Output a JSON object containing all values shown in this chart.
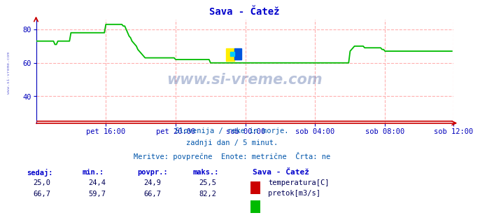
{
  "title": "Sava - Čatež",
  "title_color": "#0000cc",
  "bg_color": "#ffffff",
  "plot_bg_color": "#ffffff",
  "grid_color": "#ffb0b0",
  "axis_color": "#0000bb",
  "xlabel_ticks": [
    "pet 16:00",
    "pet 20:00",
    "sob 00:00",
    "sob 04:00",
    "sob 08:00",
    "sob 12:00"
  ],
  "tick_positions": [
    48,
    96,
    144,
    192,
    240,
    287
  ],
  "xlim": [
    0,
    287
  ],
  "ylim": [
    24,
    86
  ],
  "yticks": [
    40,
    60,
    80
  ],
  "watermark": "www.si-vreme.com",
  "watermark_color": "#1a3a8a",
  "watermark_alpha": 0.3,
  "left_label": "www.si-vreme.com",
  "footer_line1": "Slovenija / reke in morje.",
  "footer_line2": "zadnji dan / 5 minut.",
  "footer_line3": "Meritve: povprečne  Enote: metrične  Črta: ne",
  "footer_color": "#0055aa",
  "table_headers": [
    "sedaj:",
    "min.:",
    "povpr.:",
    "maks.:"
  ],
  "table_header_color": "#0000cc",
  "table_values_temp": [
    "25,0",
    "24,4",
    "24,9",
    "25,5"
  ],
  "table_values_flow": [
    "66,7",
    "59,7",
    "66,7",
    "82,2"
  ],
  "table_value_color": "#000055",
  "legend_title": "Sava - Čatež",
  "legend_temp_label": "temperatura[C]",
  "legend_flow_label": "pretok[m3/s]",
  "temp_color": "#cc0000",
  "flow_color": "#00bb00",
  "logo_yellow": "#ffee00",
  "logo_blue": "#0055dd",
  "logo_cyan": "#00ccff",
  "flow_data": [
    73,
    73,
    73,
    73,
    73,
    73,
    73,
    73,
    73,
    73,
    73,
    73,
    73,
    71,
    71,
    73,
    73,
    73,
    73,
    73,
    73,
    73,
    73,
    73,
    78,
    78,
    78,
    78,
    78,
    78,
    78,
    78,
    78,
    78,
    78,
    78,
    78,
    78,
    78,
    78,
    78,
    78,
    78,
    78,
    78,
    78,
    78,
    78,
    83,
    83,
    83,
    83,
    83,
    83,
    83,
    83,
    83,
    83,
    83,
    83,
    82,
    82,
    80,
    78,
    76,
    75,
    73,
    72,
    71,
    70,
    68,
    67,
    66,
    65,
    64,
    63,
    63,
    63,
    63,
    63,
    63,
    63,
    63,
    63,
    63,
    63,
    63,
    63,
    63,
    63,
    63,
    63,
    63,
    63,
    63,
    63,
    62,
    62,
    62,
    62,
    62,
    62,
    62,
    62,
    62,
    62,
    62,
    62,
    62,
    62,
    62,
    62,
    62,
    62,
    62,
    62,
    62,
    62,
    62,
    62,
    60,
    60,
    60,
    60,
    60,
    60,
    60,
    60,
    60,
    60,
    60,
    60,
    60,
    60,
    60,
    60,
    60,
    60,
    60,
    60,
    60,
    60,
    60,
    60,
    60,
    60,
    60,
    60,
    60,
    60,
    60,
    60,
    60,
    60,
    60,
    60,
    60,
    60,
    60,
    60,
    60,
    60,
    60,
    60,
    60,
    60,
    60,
    60,
    60,
    60,
    60,
    60,
    60,
    60,
    60,
    60,
    60,
    60,
    60,
    60,
    60,
    60,
    60,
    60,
    60,
    60,
    60,
    60,
    60,
    60,
    60,
    60,
    60,
    60,
    60,
    60,
    60,
    60,
    60,
    60,
    60,
    60,
    60,
    60,
    60,
    60,
    60,
    60,
    60,
    60,
    60,
    60,
    60,
    60,
    60,
    60,
    67,
    68,
    69,
    70,
    70,
    70,
    70,
    70,
    70,
    70,
    69,
    69,
    69,
    69,
    69,
    69,
    69,
    69,
    69,
    69,
    69,
    69,
    68,
    68,
    67,
    67,
    67,
    67,
    67,
    67,
    67,
    67,
    67,
    67,
    67,
    67,
    67,
    67,
    67,
    67,
    67,
    67,
    67,
    67,
    67,
    67,
    67,
    67,
    67,
    67,
    67,
    67,
    67,
    67,
    67,
    67,
    67,
    67,
    67,
    67,
    67,
    67,
    67,
    67,
    67,
    67,
    67,
    67,
    67,
    67,
    67
  ],
  "temp_data_val": 25
}
